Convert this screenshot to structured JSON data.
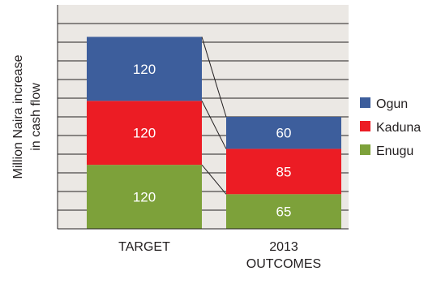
{
  "chart_data": {
    "type": "bar",
    "stacked": true,
    "categories": [
      "TARGET",
      "2013 OUTCOMES"
    ],
    "category_lines": [
      [
        "TARGET"
      ],
      [
        "2013",
        "OUTCOMES"
      ]
    ],
    "series": [
      {
        "name": "Enugu",
        "values": [
          120,
          65
        ],
        "color": "#7da13a"
      },
      {
        "name": "Kaduna",
        "values": [
          120,
          85
        ],
        "color": "#ec1c24"
      },
      {
        "name": "Ogun",
        "values": [
          120,
          60
        ],
        "color": "#3d5e9c"
      }
    ],
    "ylabel_lines": [
      "Million Naira increase",
      "in cash flow"
    ],
    "xlabel": "",
    "title": "",
    "ylim": [
      0,
      420
    ],
    "grid": true,
    "gridline_step": 35,
    "connector_lines": true,
    "legend": {
      "position": "right",
      "order": [
        "Ogun",
        "Kaduna",
        "Enugu"
      ]
    },
    "colors": {
      "plot_background": "#ebe8e4",
      "frame": "#231f20",
      "label_text": "#ffffff"
    }
  }
}
